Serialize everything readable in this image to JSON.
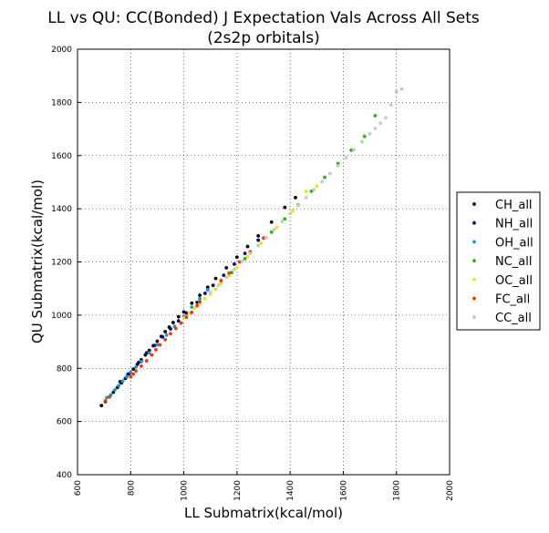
{
  "chart_data": {
    "type": "scatter",
    "title": "LL vs QU: CC(Bonded) J Expectation Vals Across All Sets",
    "subtitle": "(2s2p orbitals)",
    "xlabel": "LL Submatrix(kcal/mol)",
    "ylabel": "QU Submatrix(kcal/mol)",
    "xlim": [
      600,
      2000
    ],
    "ylim": [
      400,
      2000
    ],
    "xticks": [
      "600",
      "800",
      "1000",
      "1200",
      "1400",
      "1600",
      "1800",
      "2000"
    ],
    "yticks": [
      "400",
      "600",
      "800",
      "1000",
      "1200",
      "1400",
      "1600",
      "1800",
      "2000"
    ],
    "grid": true,
    "legend_position": "outside-right",
    "series": [
      {
        "name": "CH_all",
        "color": "#000000",
        "points": [
          [
            690,
            660
          ],
          [
            705,
            675
          ],
          [
            720,
            692
          ],
          [
            735,
            710
          ],
          [
            750,
            728
          ],
          [
            765,
            745
          ],
          [
            780,
            762
          ],
          [
            795,
            780
          ],
          [
            810,
            797
          ],
          [
            825,
            815
          ],
          [
            840,
            832
          ],
          [
            855,
            850
          ],
          [
            870,
            867
          ],
          [
            885,
            885
          ],
          [
            900,
            902
          ],
          [
            915,
            920
          ],
          [
            930,
            938
          ],
          [
            945,
            955
          ],
          [
            960,
            972
          ],
          [
            980,
            994
          ],
          [
            1000,
            1012
          ],
          [
            1030,
            1045
          ],
          [
            1060,
            1075
          ],
          [
            1090,
            1105
          ],
          [
            1120,
            1138
          ],
          [
            1160,
            1178
          ],
          [
            1200,
            1218
          ],
          [
            1240,
            1258
          ],
          [
            1280,
            1298
          ],
          [
            1330,
            1350
          ],
          [
            1380,
            1405
          ],
          [
            1420,
            1442
          ]
        ]
      },
      {
        "name": "NH_all",
        "color": "#00008b",
        "points": [
          [
            760,
            750
          ],
          [
            790,
            778
          ],
          [
            830,
            822
          ],
          [
            860,
            858
          ],
          [
            890,
            886
          ],
          [
            920,
            918
          ],
          [
            950,
            948
          ],
          [
            980,
            978
          ],
          [
            1010,
            1008
          ],
          [
            1050,
            1048
          ],
          [
            1080,
            1082
          ],
          [
            1110,
            1112
          ],
          [
            1150,
            1150
          ],
          [
            1190,
            1192
          ],
          [
            1230,
            1232
          ],
          [
            1280,
            1282
          ]
        ]
      },
      {
        "name": "OH_all",
        "color": "#00a0c8",
        "points": [
          [
            710,
            690
          ],
          [
            725,
            700
          ],
          [
            740,
            718
          ],
          [
            755,
            735
          ],
          [
            770,
            752
          ],
          [
            785,
            768
          ],
          [
            800,
            785
          ],
          [
            820,
            805
          ],
          [
            840,
            825
          ],
          [
            870,
            858
          ],
          [
            900,
            888
          ],
          [
            935,
            925
          ],
          [
            965,
            958
          ],
          [
            1000,
            996
          ],
          [
            1030,
            1030
          ],
          [
            1060,
            1062
          ],
          [
            1090,
            1095
          ]
        ]
      },
      {
        "name": "NC_all",
        "color": "#22bb00",
        "points": [
          [
            1100,
            1080
          ],
          [
            1140,
            1120
          ],
          [
            1180,
            1160
          ],
          [
            1230,
            1212
          ],
          [
            1280,
            1262
          ],
          [
            1330,
            1312
          ],
          [
            1380,
            1362
          ],
          [
            1430,
            1414
          ],
          [
            1480,
            1466
          ],
          [
            1530,
            1518
          ],
          [
            1580,
            1570
          ],
          [
            1630,
            1620
          ],
          [
            1680,
            1672
          ],
          [
            1720,
            1750
          ]
        ]
      },
      {
        "name": "OC_all",
        "color": "#e8e800",
        "points": [
          [
            1000,
            990
          ],
          [
            1020,
            1008
          ],
          [
            1040,
            1026
          ],
          [
            1060,
            1044
          ],
          [
            1080,
            1062
          ],
          [
            1100,
            1080
          ],
          [
            1120,
            1098
          ],
          [
            1140,
            1118
          ],
          [
            1170,
            1148
          ],
          [
            1200,
            1178
          ],
          [
            1240,
            1220
          ],
          [
            1290,
            1270
          ],
          [
            1350,
            1330
          ],
          [
            1410,
            1392
          ],
          [
            1460,
            1465
          ],
          [
            1500,
            1485
          ]
        ]
      },
      {
        "name": "FC_all",
        "color": "#ff3300",
        "points": [
          [
            705,
            678
          ],
          [
            720,
            692
          ],
          [
            800,
            768
          ],
          [
            810,
            778
          ],
          [
            820,
            790
          ],
          [
            840,
            808
          ],
          [
            860,
            828
          ],
          [
            880,
            850
          ],
          [
            895,
            870
          ],
          [
            910,
            888
          ],
          [
            930,
            908
          ],
          [
            950,
            930
          ],
          [
            970,
            950
          ],
          [
            990,
            970
          ],
          [
            1010,
            992
          ],
          [
            1030,
            1010
          ],
          [
            1050,
            1035
          ],
          [
            1060,
            1050
          ],
          [
            1140,
            1130
          ],
          [
            1170,
            1158
          ],
          [
            1210,
            1200
          ],
          [
            1250,
            1238
          ],
          [
            1300,
            1290
          ]
        ]
      },
      {
        "name": "CC_all",
        "color": "#c8c8c8",
        "points": [
          [
            1100,
            1085
          ],
          [
            1130,
            1112
          ],
          [
            1160,
            1142
          ],
          [
            1190,
            1172
          ],
          [
            1220,
            1202
          ],
          [
            1250,
            1232
          ],
          [
            1280,
            1262
          ],
          [
            1310,
            1292
          ],
          [
            1340,
            1322
          ],
          [
            1370,
            1352
          ],
          [
            1400,
            1382
          ],
          [
            1430,
            1412
          ],
          [
            1460,
            1442
          ],
          [
            1490,
            1472
          ],
          [
            1520,
            1502
          ],
          [
            1550,
            1532
          ],
          [
            1580,
            1562
          ],
          [
            1610,
            1592
          ],
          [
            1640,
            1622
          ],
          [
            1670,
            1652
          ],
          [
            1700,
            1682
          ],
          [
            1720,
            1702
          ],
          [
            1740,
            1722
          ],
          [
            1760,
            1742
          ],
          [
            1780,
            1790
          ],
          [
            1800,
            1840
          ],
          [
            1820,
            1850
          ]
        ]
      }
    ]
  }
}
